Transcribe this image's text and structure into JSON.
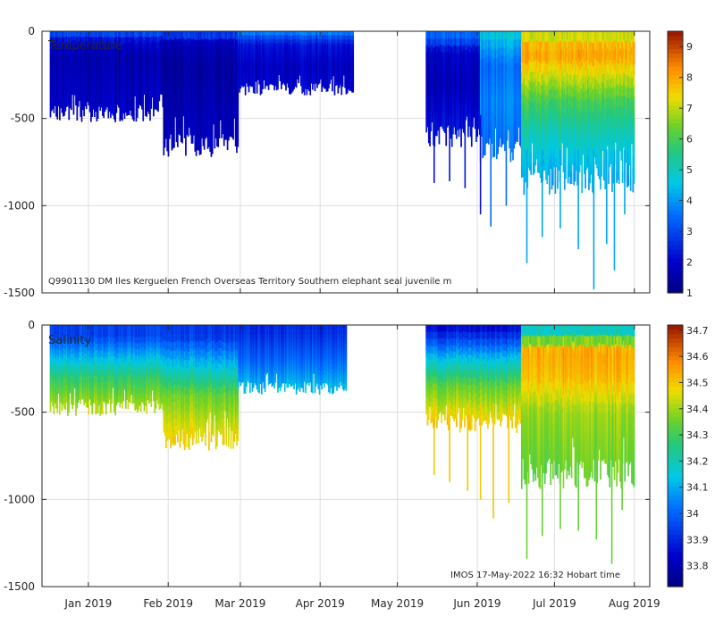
{
  "chart_data": [
    {
      "type": "heatmap",
      "panel": "top",
      "title": "Temperature",
      "caption": "Q9901130 DM Iles Kerguelen French Overseas Territory Southern elephant seal juvenile m",
      "ylabel": "",
      "ylim": [
        -1500,
        0
      ],
      "yticks": [
        {
          "value": 0,
          "label": "0"
        },
        {
          "value": -500,
          "label": "-500"
        },
        {
          "value": -1000,
          "label": "-1000"
        },
        {
          "value": -1500,
          "label": "-1500"
        }
      ],
      "xlim_days": [
        -18,
        218
      ],
      "colorbar": {
        "min": 1.0,
        "max": 9.5,
        "ticks": [
          {
            "value": 1,
            "label": "1"
          },
          {
            "value": 2,
            "label": "2"
          },
          {
            "value": 3,
            "label": "3"
          },
          {
            "value": 4,
            "label": "4"
          },
          {
            "value": 5,
            "label": "5"
          },
          {
            "value": 6,
            "label": "6"
          },
          {
            "value": 7,
            "label": "7"
          },
          {
            "value": 8,
            "label": "8"
          },
          {
            "value": 9,
            "label": "9"
          }
        ]
      },
      "segments": [
        {
          "start": -15,
          "end": 29,
          "max_depth": 470,
          "bands": [
            {
              "depth": 0,
              "value": 3.8
            },
            {
              "depth": 15,
              "value": 3.0
            },
            {
              "depth": 60,
              "value": 2.0
            },
            {
              "depth": 150,
              "value": 1.6
            },
            {
              "depth": 470,
              "value": 1.9
            }
          ]
        },
        {
          "start": 29,
          "end": 58,
          "max_depth": 650,
          "bands": [
            {
              "depth": 0,
              "value": 3.6
            },
            {
              "depth": 20,
              "value": 2.8
            },
            {
              "depth": 70,
              "value": 1.7
            },
            {
              "depth": 200,
              "value": 1.4
            },
            {
              "depth": 650,
              "value": 1.8
            }
          ]
        },
        {
          "start": 58,
          "end": 103,
          "max_depth": 330,
          "bands": [
            {
              "depth": 0,
              "value": 4.0
            },
            {
              "depth": 25,
              "value": 3.2
            },
            {
              "depth": 80,
              "value": 2.2
            },
            {
              "depth": 200,
              "value": 1.8
            },
            {
              "depth": 330,
              "value": 2.0
            }
          ]
        },
        {
          "start": 131,
          "end": 152,
          "max_depth": 600,
          "bands": [
            {
              "depth": 0,
              "value": 3.6
            },
            {
              "depth": 60,
              "value": 3.0
            },
            {
              "depth": 120,
              "value": 1.9
            },
            {
              "depth": 300,
              "value": 1.7
            },
            {
              "depth": 600,
              "value": 2.3
            }
          ]
        },
        {
          "start": 152,
          "end": 168,
          "max_depth": 680,
          "bands": [
            {
              "depth": 0,
              "value": 4.8
            },
            {
              "depth": 80,
              "value": 4.2
            },
            {
              "depth": 200,
              "value": 3.5
            },
            {
              "depth": 400,
              "value": 3.8
            },
            {
              "depth": 680,
              "value": 3.5
            }
          ]
        },
        {
          "start": 168,
          "end": 212,
          "max_depth": 850,
          "bands": [
            {
              "depth": 0,
              "value": 6.8
            },
            {
              "depth": 120,
              "value": 8.2
            },
            {
              "depth": 250,
              "value": 7.2
            },
            {
              "depth": 400,
              "value": 6.0
            },
            {
              "depth": 600,
              "value": 5.0
            },
            {
              "depth": 850,
              "value": 4.2
            }
          ]
        }
      ],
      "deep_dives": [
        {
          "day": 134,
          "depth": 870
        },
        {
          "day": 140,
          "depth": 860
        },
        {
          "day": 146,
          "depth": 900
        },
        {
          "day": 152,
          "depth": 1050
        },
        {
          "day": 156,
          "depth": 1120
        },
        {
          "day": 162,
          "depth": 1000
        },
        {
          "day": 170,
          "depth": 1330
        },
        {
          "day": 176,
          "depth": 1180
        },
        {
          "day": 183,
          "depth": 1130
        },
        {
          "day": 190,
          "depth": 1250
        },
        {
          "day": 196,
          "depth": 1480
        },
        {
          "day": 201,
          "depth": 1220
        },
        {
          "day": 204,
          "depth": 1370
        },
        {
          "day": 208,
          "depth": 1050
        }
      ]
    },
    {
      "type": "heatmap",
      "panel": "bottom",
      "title": "Salinity",
      "caption": "IMOS 17-May-2022 16:32 Hobart time",
      "ylabel": "",
      "ylim": [
        -1500,
        0
      ],
      "yticks": [
        {
          "value": 0,
          "label": "0"
        },
        {
          "value": -500,
          "label": "-500"
        },
        {
          "value": -1000,
          "label": "-1000"
        },
        {
          "value": -1500,
          "label": "-1500"
        }
      ],
      "xlim_days": [
        -18,
        218
      ],
      "xticks": [
        {
          "day": 0,
          "label": "Jan 2019"
        },
        {
          "day": 31,
          "label": "Feb 2019"
        },
        {
          "day": 59,
          "label": "Mar 2019"
        },
        {
          "day": 90,
          "label": "Apr 2019"
        },
        {
          "day": 120,
          "label": "May 2019"
        },
        {
          "day": 151,
          "label": "Jun 2019"
        },
        {
          "day": 181,
          "label": "Jul 2019"
        },
        {
          "day": 212,
          "label": "Aug 2019"
        }
      ],
      "colorbar": {
        "min": 33.72,
        "max": 34.72,
        "ticks": [
          {
            "value": 33.8,
            "label": "33.8"
          },
          {
            "value": 33.9,
            "label": "33.9"
          },
          {
            "value": 34.0,
            "label": "34"
          },
          {
            "value": 34.1,
            "label": "34.1"
          },
          {
            "value": 34.2,
            "label": "34.2"
          },
          {
            "value": 34.3,
            "label": "34.3"
          },
          {
            "value": 34.4,
            "label": "34.4"
          },
          {
            "value": 34.5,
            "label": "34.5"
          },
          {
            "value": 34.6,
            "label": "34.6"
          },
          {
            "value": 34.7,
            "label": "34.7"
          }
        ]
      },
      "segments": [
        {
          "start": -15,
          "end": 29,
          "max_depth": 470,
          "bands": [
            {
              "depth": 0,
              "value": 33.95
            },
            {
              "depth": 60,
              "value": 33.95
            },
            {
              "depth": 170,
              "value": 34.1
            },
            {
              "depth": 300,
              "value": 34.28
            },
            {
              "depth": 470,
              "value": 34.42
            }
          ]
        },
        {
          "start": 29,
          "end": 58,
          "max_depth": 650,
          "bands": [
            {
              "depth": 0,
              "value": 33.93
            },
            {
              "depth": 60,
              "value": 33.93
            },
            {
              "depth": 200,
              "value": 34.1
            },
            {
              "depth": 400,
              "value": 34.35
            },
            {
              "depth": 650,
              "value": 34.48
            }
          ]
        },
        {
          "start": 58,
          "end": 100,
          "max_depth": 360,
          "bands": [
            {
              "depth": 0,
              "value": 33.9
            },
            {
              "depth": 60,
              "value": 33.92
            },
            {
              "depth": 200,
              "value": 34.0
            },
            {
              "depth": 360,
              "value": 34.12
            }
          ]
        },
        {
          "start": 131,
          "end": 168,
          "max_depth": 560,
          "bands": [
            {
              "depth": 0,
              "value": 33.84
            },
            {
              "depth": 80,
              "value": 33.95
            },
            {
              "depth": 200,
              "value": 34.15
            },
            {
              "depth": 350,
              "value": 34.35
            },
            {
              "depth": 560,
              "value": 34.5
            }
          ]
        },
        {
          "start": 168,
          "end": 212,
          "max_depth": 850,
          "bands": [
            {
              "depth": 0,
              "value": 34.1
            },
            {
              "depth": 150,
              "value": 34.55
            },
            {
              "depth": 300,
              "value": 34.52
            },
            {
              "depth": 500,
              "value": 34.4
            },
            {
              "depth": 850,
              "value": 34.35
            }
          ]
        }
      ],
      "deep_dives": [
        {
          "day": 134,
          "depth": 860
        },
        {
          "day": 140,
          "depth": 900
        },
        {
          "day": 147,
          "depth": 950
        },
        {
          "day": 152,
          "depth": 1000
        },
        {
          "day": 157,
          "depth": 1110
        },
        {
          "day": 163,
          "depth": 1020
        },
        {
          "day": 170,
          "depth": 1340
        },
        {
          "day": 176,
          "depth": 1210
        },
        {
          "day": 183,
          "depth": 1170
        },
        {
          "day": 190,
          "depth": 1180
        },
        {
          "day": 197,
          "depth": 1230
        },
        {
          "day": 203,
          "depth": 1370
        },
        {
          "day": 207,
          "depth": 1060
        }
      ]
    }
  ]
}
